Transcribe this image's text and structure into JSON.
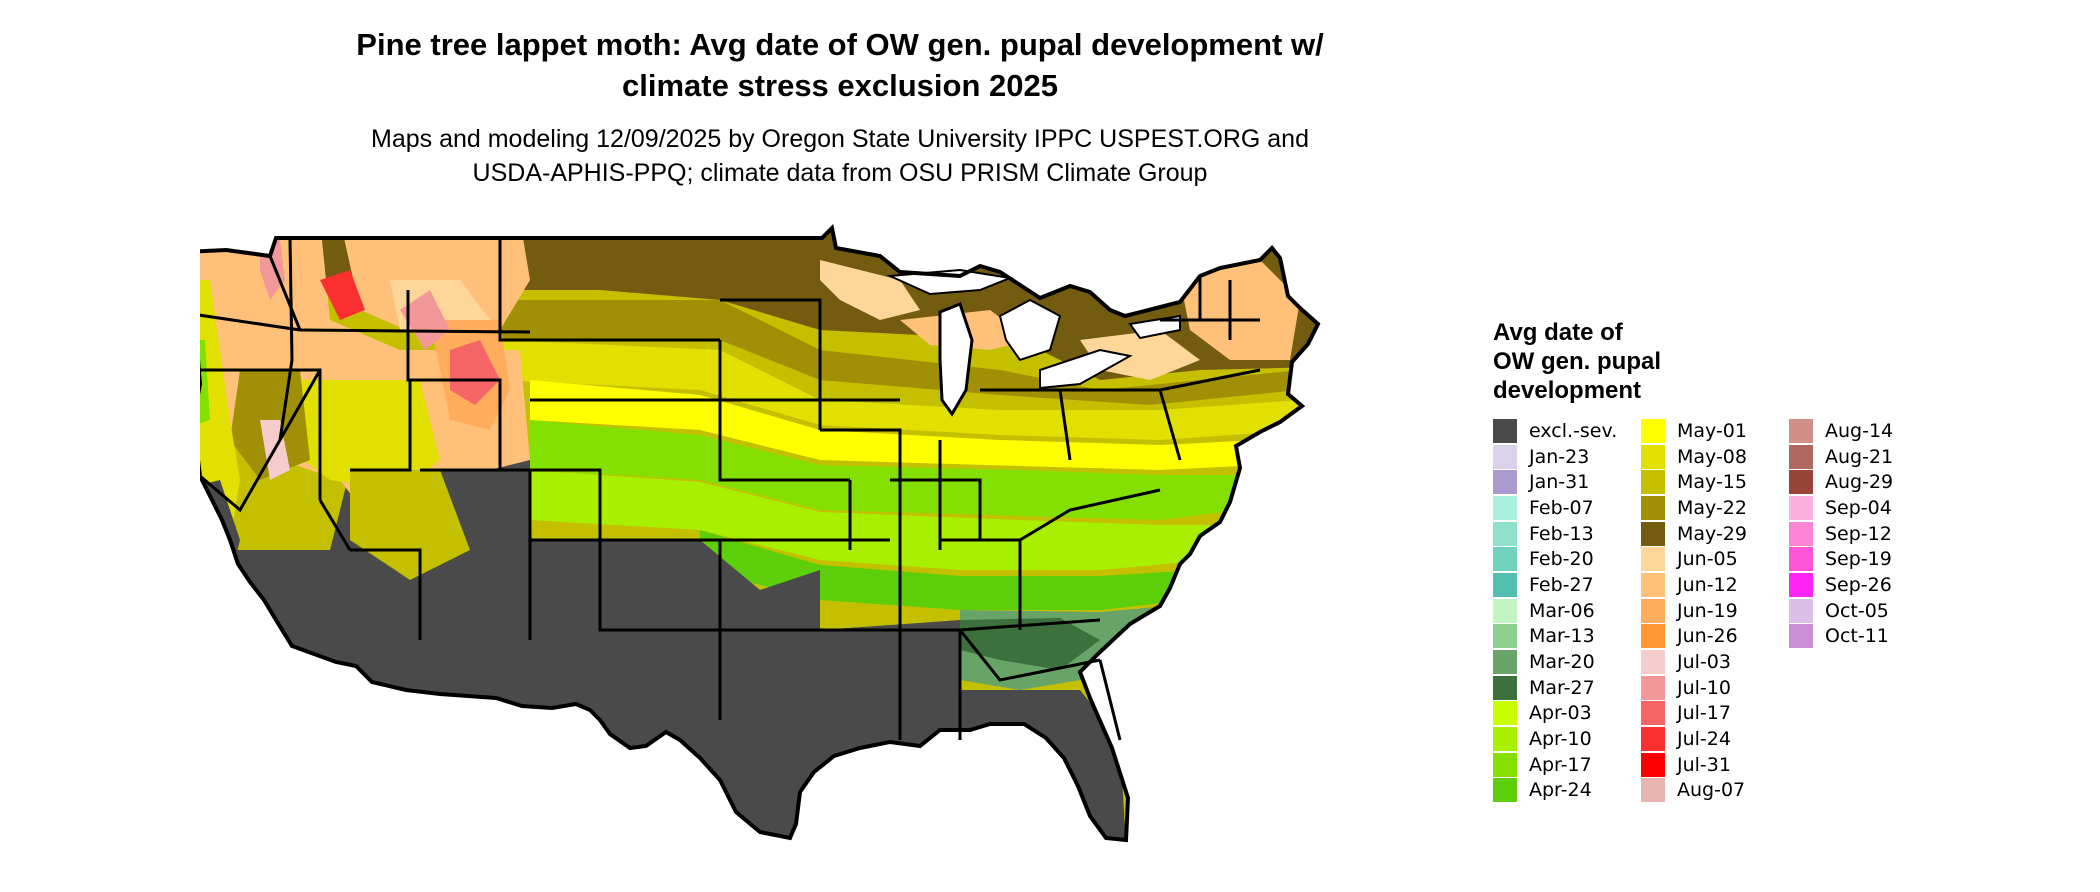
{
  "title_line1": "Pine tree lappet moth: Avg date of OW gen. pupal development w/",
  "title_line2": "climate stress exclusion 2025",
  "subtitle_line1": "Maps and modeling 12/09/2025 by Oregon State University IPPC USPEST.ORG and",
  "subtitle_line2": "USDA-APHIS-PPQ; climate data from OSU PRISM Climate Group",
  "legend": {
    "title_line1": "Avg date of",
    "title_line2": "OW gen. pupal",
    "title_line3": "development",
    "items": [
      {
        "label": "excl.-sev.",
        "color": "#4a4a4a"
      },
      {
        "label": "Jan-23",
        "color": "#d9d2ea"
      },
      {
        "label": "Jan-31",
        "color": "#ab99cf"
      },
      {
        "label": "Feb-07",
        "color": "#a8efe0"
      },
      {
        "label": "Feb-13",
        "color": "#8fe0cd"
      },
      {
        "label": "Feb-20",
        "color": "#6fd3c0"
      },
      {
        "label": "Feb-27",
        "color": "#52bfb0"
      },
      {
        "label": "Mar-06",
        "color": "#c3f5c3"
      },
      {
        "label": "Mar-13",
        "color": "#8fd08f"
      },
      {
        "label": "Mar-20",
        "color": "#68a468"
      },
      {
        "label": "Mar-27",
        "color": "#3c703c"
      },
      {
        "label": "Apr-03",
        "color": "#c8ff00"
      },
      {
        "label": "Apr-10",
        "color": "#a8f000"
      },
      {
        "label": "Apr-17",
        "color": "#84e000"
      },
      {
        "label": "Apr-24",
        "color": "#5ccf0a"
      },
      {
        "label": "May-01",
        "color": "#ffff00"
      },
      {
        "label": "May-08",
        "color": "#e2e000"
      },
      {
        "label": "May-15",
        "color": "#c4c000"
      },
      {
        "label": "May-22",
        "color": "#a19005"
      },
      {
        "label": "May-29",
        "color": "#735c10"
      },
      {
        "label": "Jun-05",
        "color": "#ffd69a"
      },
      {
        "label": "Jun-12",
        "color": "#ffc07a"
      },
      {
        "label": "Jun-19",
        "color": "#ffad5c"
      },
      {
        "label": "Jun-26",
        "color": "#ff9733"
      },
      {
        "label": "Jul-03",
        "color": "#f6cccc"
      },
      {
        "label": "Jul-10",
        "color": "#f29898"
      },
      {
        "label": "Jul-17",
        "color": "#f56565"
      },
      {
        "label": "Jul-24",
        "color": "#fa3030"
      },
      {
        "label": "Jul-31",
        "color": "#ff0000"
      },
      {
        "label": "Aug-07",
        "color": "#e8b4b0"
      },
      {
        "label": "Aug-14",
        "color": "#d09088"
      },
      {
        "label": "Aug-21",
        "color": "#b0685e"
      },
      {
        "label": "Aug-29",
        "color": "#9a4438"
      },
      {
        "label": "Sep-04",
        "color": "#fbb0de"
      },
      {
        "label": "Sep-12",
        "color": "#fc84d6"
      },
      {
        "label": "Sep-19",
        "color": "#fc55da"
      },
      {
        "label": "Sep-26",
        "color": "#fb24f4"
      },
      {
        "label": "Oct-05",
        "color": "#dcbfe6"
      },
      {
        "label": "Oct-11",
        "color": "#cb90d8"
      }
    ]
  }
}
